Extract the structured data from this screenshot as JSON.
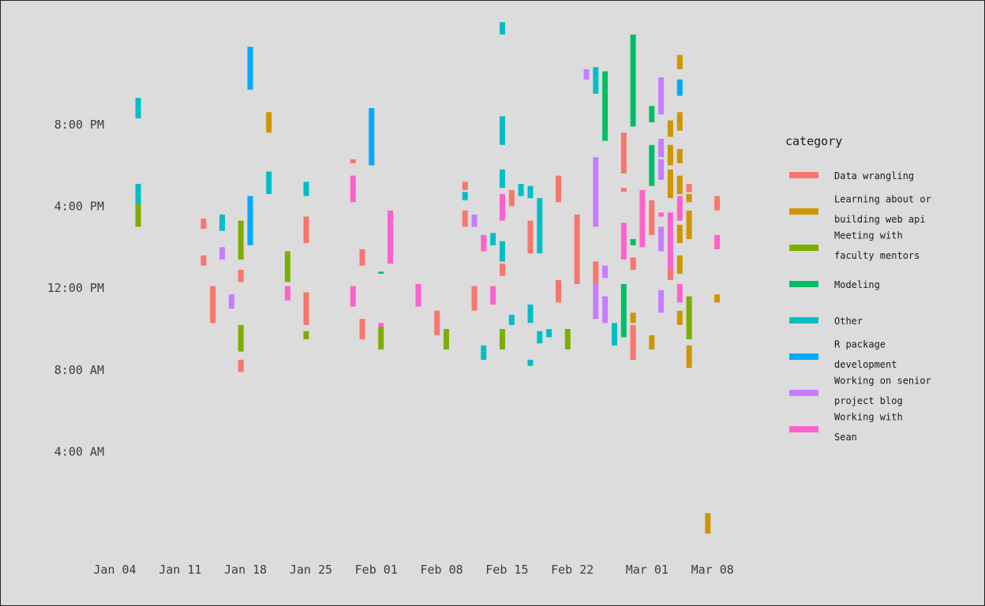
{
  "chart_data": {
    "type": "bar",
    "subtype": "floating-time-range",
    "title": "",
    "xlabel": "",
    "ylabel": "",
    "grid": false,
    "legend_placement": "right",
    "legend_title": "category",
    "x_range": [
      "2024-01-01",
      "2024-03-12"
    ],
    "y_range_hours": [
      -1.3,
      25.7
    ],
    "x_ticks": [
      {
        "date": "2024-01-04",
        "label": "Jan 04"
      },
      {
        "date": "2024-01-11",
        "label": "Jan 11"
      },
      {
        "date": "2024-01-18",
        "label": "Jan 18"
      },
      {
        "date": "2024-01-25",
        "label": "Jan 25"
      },
      {
        "date": "2024-02-01",
        "label": "Feb 01"
      },
      {
        "date": "2024-02-08",
        "label": "Feb 08"
      },
      {
        "date": "2024-02-15",
        "label": "Feb 15"
      },
      {
        "date": "2024-02-22",
        "label": "Feb 22"
      },
      {
        "date": "2024-03-01",
        "label": "Mar 01"
      },
      {
        "date": "2024-03-08",
        "label": "Mar 08"
      }
    ],
    "y_ticks": [
      {
        "hour": 4,
        "label": "4:00 AM"
      },
      {
        "hour": 8,
        "label": "8:00 AM"
      },
      {
        "hour": 12,
        "label": "12:00 PM"
      },
      {
        "hour": 16,
        "label": "4:00 PM"
      },
      {
        "hour": 20,
        "label": "8:00 PM"
      }
    ],
    "categories": [
      {
        "key": "data",
        "label_lines": [
          "Data wrangling"
        ],
        "color": "#f8766d"
      },
      {
        "key": "web",
        "label_lines": [
          "Learning about or",
          "building web api"
        ],
        "color": "#cd9600"
      },
      {
        "key": "meet",
        "label_lines": [
          "Meeting with",
          "faculty mentors"
        ],
        "color": "#7cae00"
      },
      {
        "key": "model",
        "label_lines": [
          "Modeling"
        ],
        "color": "#00be67"
      },
      {
        "key": "other",
        "label_lines": [
          "Other"
        ],
        "color": "#00bfc4"
      },
      {
        "key": "rpkg",
        "label_lines": [
          "R package",
          "development"
        ],
        "color": "#00a9ff"
      },
      {
        "key": "blog",
        "label_lines": [
          "Working on senior",
          "project blog"
        ],
        "color": "#c77cff"
      },
      {
        "key": "sean",
        "label_lines": [
          "Working with",
          "Sean"
        ],
        "color": "#ff61cc"
      }
    ],
    "sessions": [
      {
        "date": "2024-01-06",
        "category": "other",
        "start": 20.3,
        "end": 21.3
      },
      {
        "date": "2024-01-06",
        "category": "other",
        "start": 16.1,
        "end": 17.1
      },
      {
        "date": "2024-01-06",
        "category": "meet",
        "start": 15.0,
        "end": 16.1
      },
      {
        "date": "2024-01-13",
        "category": "data",
        "start": 14.9,
        "end": 15.4
      },
      {
        "date": "2024-01-13",
        "category": "data",
        "start": 13.1,
        "end": 13.6
      },
      {
        "date": "2024-01-14",
        "category": "data",
        "start": 10.3,
        "end": 12.1
      },
      {
        "date": "2024-01-15",
        "category": "blog",
        "start": 13.4,
        "end": 14.0
      },
      {
        "date": "2024-01-15",
        "category": "other",
        "start": 14.8,
        "end": 15.6
      },
      {
        "date": "2024-01-16",
        "category": "blog",
        "start": 11.0,
        "end": 11.7
      },
      {
        "date": "2024-01-17",
        "category": "meet",
        "start": 13.4,
        "end": 15.3
      },
      {
        "date": "2024-01-17",
        "category": "data",
        "start": 12.3,
        "end": 12.9
      },
      {
        "date": "2024-01-17",
        "category": "meet",
        "start": 8.9,
        "end": 10.2
      },
      {
        "date": "2024-01-17",
        "category": "data",
        "start": 7.9,
        "end": 8.5
      },
      {
        "date": "2024-01-18",
        "category": "rpkg",
        "start": 21.7,
        "end": 23.8
      },
      {
        "date": "2024-01-18",
        "category": "rpkg",
        "start": 15.8,
        "end": 16.5
      },
      {
        "date": "2024-01-18",
        "category": "rpkg",
        "start": 14.1,
        "end": 16.4
      },
      {
        "date": "2024-01-20",
        "category": "web",
        "start": 19.6,
        "end": 20.6
      },
      {
        "date": "2024-01-20",
        "category": "other",
        "start": 16.6,
        "end": 17.7
      },
      {
        "date": "2024-01-22",
        "category": "meet",
        "start": 12.3,
        "end": 13.8
      },
      {
        "date": "2024-01-22",
        "category": "sean",
        "start": 11.4,
        "end": 12.1
      },
      {
        "date": "2024-01-24",
        "category": "other",
        "start": 16.5,
        "end": 17.2
      },
      {
        "date": "2024-01-24",
        "category": "data",
        "start": 14.2,
        "end": 15.5
      },
      {
        "date": "2024-01-24",
        "category": "data",
        "start": 10.2,
        "end": 11.8
      },
      {
        "date": "2024-01-24",
        "category": "meet",
        "start": 9.5,
        "end": 9.9
      },
      {
        "date": "2024-01-29",
        "category": "data",
        "start": 18.1,
        "end": 18.3
      },
      {
        "date": "2024-01-29",
        "category": "sean",
        "start": 16.2,
        "end": 17.5
      },
      {
        "date": "2024-01-29",
        "category": "sean",
        "start": 11.1,
        "end": 12.1
      },
      {
        "date": "2024-01-30",
        "category": "data",
        "start": 13.1,
        "end": 13.9
      },
      {
        "date": "2024-01-30",
        "category": "data",
        "start": 9.5,
        "end": 10.5
      },
      {
        "date": "2024-01-31",
        "category": "rpkg",
        "start": 18.0,
        "end": 20.8
      },
      {
        "date": "2024-02-01",
        "category": "model",
        "start": 12.7,
        "end": 12.8
      },
      {
        "date": "2024-02-01",
        "category": "sean",
        "start": 10.1,
        "end": 10.3
      },
      {
        "date": "2024-02-01",
        "category": "meet",
        "start": 9.0,
        "end": 10.1
      },
      {
        "date": "2024-02-02",
        "category": "sean",
        "start": 13.2,
        "end": 15.8
      },
      {
        "date": "2024-02-05",
        "category": "sean",
        "start": 11.1,
        "end": 12.2
      },
      {
        "date": "2024-02-07",
        "category": "data",
        "start": 9.7,
        "end": 10.9
      },
      {
        "date": "2024-02-08",
        "category": "meet",
        "start": 9.0,
        "end": 10.0
      },
      {
        "date": "2024-02-10",
        "category": "data",
        "start": 16.8,
        "end": 17.2
      },
      {
        "date": "2024-02-10",
        "category": "other",
        "start": 16.3,
        "end": 16.7
      },
      {
        "date": "2024-02-10",
        "category": "data",
        "start": 15.0,
        "end": 15.8
      },
      {
        "date": "2024-02-11",
        "category": "sean",
        "start": 15.2,
        "end": 15.4
      },
      {
        "date": "2024-02-11",
        "category": "blog",
        "start": 15.0,
        "end": 15.6
      },
      {
        "date": "2024-02-11",
        "category": "data",
        "start": 10.9,
        "end": 12.1
      },
      {
        "date": "2024-02-12",
        "category": "sean",
        "start": 13.8,
        "end": 14.6
      },
      {
        "date": "2024-02-12",
        "category": "other",
        "start": 8.5,
        "end": 8.9
      },
      {
        "date": "2024-02-12",
        "category": "other",
        "start": 8.9,
        "end": 9.2
      },
      {
        "date": "2024-02-13",
        "category": "sean",
        "start": 11.2,
        "end": 12.1
      },
      {
        "date": "2024-02-13",
        "category": "other",
        "start": 14.1,
        "end": 14.7
      },
      {
        "date": "2024-02-14",
        "category": "other",
        "start": 24.4,
        "end": 25.0
      },
      {
        "date": "2024-02-14",
        "category": "other",
        "start": 19.0,
        "end": 20.4
      },
      {
        "date": "2024-02-14",
        "category": "other",
        "start": 16.9,
        "end": 17.8
      },
      {
        "date": "2024-02-14",
        "category": "sean",
        "start": 15.3,
        "end": 16.6
      },
      {
        "date": "2024-02-14",
        "category": "other",
        "start": 13.3,
        "end": 14.3
      },
      {
        "date": "2024-02-14",
        "category": "data",
        "start": 12.6,
        "end": 13.2
      },
      {
        "date": "2024-02-14",
        "category": "meet",
        "start": 9.0,
        "end": 10.0
      },
      {
        "date": "2024-02-15",
        "category": "data",
        "start": 16.0,
        "end": 16.8
      },
      {
        "date": "2024-02-15",
        "category": "other",
        "start": 10.2,
        "end": 10.7
      },
      {
        "date": "2024-02-16",
        "category": "other",
        "start": 16.5,
        "end": 17.1
      },
      {
        "date": "2024-02-17",
        "category": "other",
        "start": 16.4,
        "end": 17.0
      },
      {
        "date": "2024-02-17",
        "category": "data",
        "start": 13.7,
        "end": 15.3
      },
      {
        "date": "2024-02-17",
        "category": "other",
        "start": 10.3,
        "end": 11.2
      },
      {
        "date": "2024-02-17",
        "category": "other",
        "start": 8.2,
        "end": 8.5
      },
      {
        "date": "2024-02-18",
        "category": "other",
        "start": 13.7,
        "end": 16.4
      },
      {
        "date": "2024-02-18",
        "category": "other",
        "start": 9.3,
        "end": 9.9
      },
      {
        "date": "2024-02-19",
        "category": "other",
        "start": 9.6,
        "end": 10.0
      },
      {
        "date": "2024-02-20",
        "category": "data",
        "start": 16.2,
        "end": 17.5
      },
      {
        "date": "2024-02-20",
        "category": "data",
        "start": 11.3,
        "end": 12.4
      },
      {
        "date": "2024-02-21",
        "category": "meet",
        "start": 9.0,
        "end": 10.0
      },
      {
        "date": "2024-02-22",
        "category": "data",
        "start": 12.2,
        "end": 15.6
      },
      {
        "date": "2024-02-23",
        "category": "blog",
        "start": 22.2,
        "end": 22.7
      },
      {
        "date": "2024-02-24",
        "category": "other",
        "start": 21.5,
        "end": 22.8
      },
      {
        "date": "2024-02-24",
        "category": "blog",
        "start": 15.0,
        "end": 18.4
      },
      {
        "date": "2024-02-24",
        "category": "data",
        "start": 12.2,
        "end": 13.3
      },
      {
        "date": "2024-02-24",
        "category": "blog",
        "start": 11.0,
        "end": 12.2
      },
      {
        "date": "2024-02-24",
        "category": "blog",
        "start": 10.5,
        "end": 11.0
      },
      {
        "date": "2024-02-25",
        "category": "model",
        "start": 19.2,
        "end": 22.6
      },
      {
        "date": "2024-02-25",
        "category": "blog",
        "start": 12.5,
        "end": 13.1
      },
      {
        "date": "2024-02-25",
        "category": "blog",
        "start": 10.3,
        "end": 11.6
      },
      {
        "date": "2024-02-26",
        "category": "other",
        "start": 9.2,
        "end": 10.3
      },
      {
        "date": "2024-02-27",
        "category": "data",
        "start": 17.6,
        "end": 19.6
      },
      {
        "date": "2024-02-27",
        "category": "data",
        "start": 16.7,
        "end": 16.9
      },
      {
        "date": "2024-02-27",
        "category": "sean",
        "start": 13.4,
        "end": 15.2
      },
      {
        "date": "2024-02-27",
        "category": "model",
        "start": 9.6,
        "end": 12.2
      },
      {
        "date": "2024-02-28",
        "category": "model",
        "start": 19.9,
        "end": 24.4
      },
      {
        "date": "2024-02-28",
        "category": "model",
        "start": 14.1,
        "end": 14.4
      },
      {
        "date": "2024-02-28",
        "category": "data",
        "start": 12.9,
        "end": 13.5
      },
      {
        "date": "2024-02-28",
        "category": "web",
        "start": 10.3,
        "end": 10.8
      },
      {
        "date": "2024-02-28",
        "category": "data",
        "start": 8.5,
        "end": 10.2
      },
      {
        "date": "2024-02-29",
        "category": "sean",
        "start": 14.0,
        "end": 16.8
      },
      {
        "date": "2024-03-01",
        "category": "model",
        "start": 20.1,
        "end": 20.9
      },
      {
        "date": "2024-03-01",
        "category": "model",
        "start": 17.0,
        "end": 19.0
      },
      {
        "date": "2024-03-01",
        "category": "data",
        "start": 14.6,
        "end": 16.3
      },
      {
        "date": "2024-03-01",
        "category": "web",
        "start": 9.0,
        "end": 9.7
      },
      {
        "date": "2024-03-02",
        "category": "blog",
        "start": 20.5,
        "end": 22.3
      },
      {
        "date": "2024-03-02",
        "category": "blog",
        "start": 18.4,
        "end": 19.3
      },
      {
        "date": "2024-03-02",
        "category": "blog",
        "start": 17.3,
        "end": 18.3
      },
      {
        "date": "2024-03-02",
        "category": "sean",
        "start": 15.5,
        "end": 15.7
      },
      {
        "date": "2024-03-02",
        "category": "blog",
        "start": 13.8,
        "end": 15.0
      },
      {
        "date": "2024-03-02",
        "category": "blog",
        "start": 10.8,
        "end": 11.9
      },
      {
        "date": "2024-03-03",
        "category": "web",
        "start": 19.4,
        "end": 20.2
      },
      {
        "date": "2024-03-03",
        "category": "web",
        "start": 18.0,
        "end": 19.0
      },
      {
        "date": "2024-03-03",
        "category": "web",
        "start": 16.4,
        "end": 17.8
      },
      {
        "date": "2024-03-03",
        "category": "sean",
        "start": 12.7,
        "end": 15.7
      },
      {
        "date": "2024-03-03",
        "category": "data",
        "start": 12.4,
        "end": 12.9
      },
      {
        "date": "2024-03-04",
        "category": "web",
        "start": 22.7,
        "end": 23.4
      },
      {
        "date": "2024-03-04",
        "category": "rpkg",
        "start": 21.4,
        "end": 22.2
      },
      {
        "date": "2024-03-04",
        "category": "web",
        "start": 19.7,
        "end": 20.6
      },
      {
        "date": "2024-03-04",
        "category": "web",
        "start": 18.1,
        "end": 18.8
      },
      {
        "date": "2024-03-04",
        "category": "web",
        "start": 16.6,
        "end": 17.5
      },
      {
        "date": "2024-03-04",
        "category": "sean",
        "start": 15.3,
        "end": 16.5
      },
      {
        "date": "2024-03-04",
        "category": "web",
        "start": 14.2,
        "end": 15.1
      },
      {
        "date": "2024-03-04",
        "category": "web",
        "start": 12.7,
        "end": 13.6
      },
      {
        "date": "2024-03-04",
        "category": "sean",
        "start": 11.3,
        "end": 12.2
      },
      {
        "date": "2024-03-04",
        "category": "web",
        "start": 10.2,
        "end": 10.9
      },
      {
        "date": "2024-03-05",
        "category": "data",
        "start": 16.7,
        "end": 17.1
      },
      {
        "date": "2024-03-05",
        "category": "web",
        "start": 16.2,
        "end": 16.6
      },
      {
        "date": "2024-03-05",
        "category": "web",
        "start": 14.4,
        "end": 15.8
      },
      {
        "date": "2024-03-05",
        "category": "meet",
        "start": 9.5,
        "end": 11.6
      },
      {
        "date": "2024-03-05",
        "category": "web",
        "start": 8.1,
        "end": 9.2
      },
      {
        "date": "2024-03-07",
        "category": "web",
        "start": 0.0,
        "end": 1.0
      },
      {
        "date": "2024-03-08",
        "category": "data",
        "start": 15.8,
        "end": 16.5
      },
      {
        "date": "2024-03-08",
        "category": "sean",
        "start": 13.9,
        "end": 14.6
      },
      {
        "date": "2024-03-08",
        "category": "web",
        "start": 11.3,
        "end": 11.7
      }
    ]
  }
}
